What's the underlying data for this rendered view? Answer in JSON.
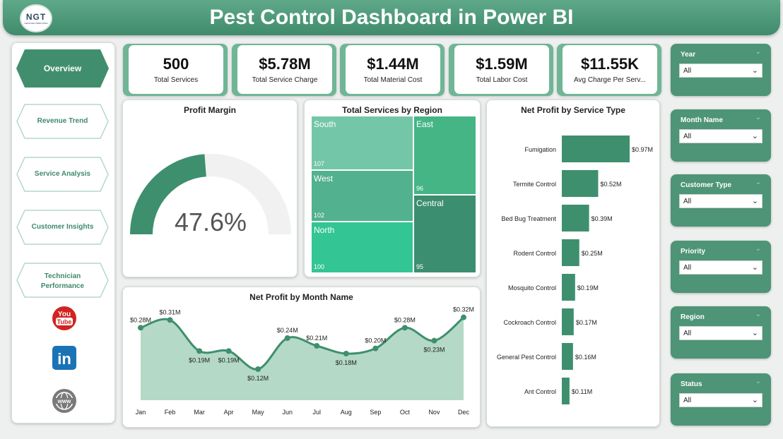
{
  "header": {
    "title": "Pest Control Dashboard in Power BI",
    "logo_text": "NGT",
    "logo_sub": "NEXTGEN TEMPLATES"
  },
  "nav": {
    "items": [
      {
        "label": "Overview",
        "active": true
      },
      {
        "label": "Revenue Trend",
        "active": false
      },
      {
        "label": "Service Analysis",
        "active": false
      },
      {
        "label": "Customer Insights",
        "active": false
      },
      {
        "label": "Technician Performance",
        "active": false
      }
    ],
    "social": {
      "youtube_line1": "You",
      "youtube_line2": "Tube",
      "linkedin": "in",
      "web": "www"
    }
  },
  "kpis": [
    {
      "value": "500",
      "label": "Total Services"
    },
    {
      "value": "$5.78M",
      "label": "Total Service Charge"
    },
    {
      "value": "$1.44M",
      "label": "Total Material Cost"
    },
    {
      "value": "$1.59M",
      "label": "Total Labor Cost"
    },
    {
      "value": "$11.55K",
      "label": "Avg Charge Per Serv..."
    }
  ],
  "gauge": {
    "title": "Profit Margin",
    "value_label": "47.6%",
    "fraction": 0.476
  },
  "treemap": {
    "title": "Total Services by Region",
    "cells": [
      {
        "name": "South",
        "value": "107"
      },
      {
        "name": "West",
        "value": "102"
      },
      {
        "name": "North",
        "value": "100"
      },
      {
        "name": "East",
        "value": "96"
      },
      {
        "name": "Central",
        "value": "95"
      }
    ]
  },
  "bar_chart": {
    "title": "Net Profit by Service Type",
    "categories": [
      "Fumigation",
      "Termite Control",
      "Bed Bug Treatment",
      "Rodent Control",
      "Mosquito Control",
      "Cockroach Control",
      "General Pest Control",
      "Ant Control"
    ],
    "values": [
      0.97,
      0.52,
      0.39,
      0.25,
      0.19,
      0.17,
      0.16,
      0.11
    ],
    "labels": [
      "$0.97M",
      "$0.52M",
      "$0.39M",
      "$0.25M",
      "$0.19M",
      "$0.17M",
      "$0.16M",
      "$0.11M"
    ]
  },
  "line_chart": {
    "title": "Net Profit by Month Name",
    "months": [
      "Jan",
      "Feb",
      "Mar",
      "Apr",
      "May",
      "Jun",
      "Jul",
      "Aug",
      "Sep",
      "Oct",
      "Nov",
      "Dec"
    ],
    "values": [
      0.28,
      0.31,
      0.19,
      0.19,
      0.12,
      0.24,
      0.21,
      0.18,
      0.2,
      0.28,
      0.23,
      0.32
    ],
    "labels": [
      "$0.28M",
      "$0.31M",
      "$0.19M",
      "$0.19M",
      "$0.12M",
      "$0.24M",
      "$0.21M",
      "$0.18M",
      "$0.20M",
      "$0.28M",
      "$0.23M",
      "$0.32M"
    ]
  },
  "chart_data": [
    {
      "type": "bar",
      "title": "Net Profit by Service Type",
      "categories": [
        "Fumigation",
        "Termite Control",
        "Bed Bug Treatment",
        "Rodent Control",
        "Mosquito Control",
        "Cockroach Control",
        "General Pest Control",
        "Ant Control"
      ],
      "values": [
        0.97,
        0.52,
        0.39,
        0.25,
        0.19,
        0.17,
        0.16,
        0.11
      ]
    },
    {
      "type": "area",
      "title": "Net Profit by Month Name",
      "categories": [
        "Jan",
        "Feb",
        "Mar",
        "Apr",
        "May",
        "Jun",
        "Jul",
        "Aug",
        "Sep",
        "Oct",
        "Nov",
        "Dec"
      ],
      "values": [
        0.28,
        0.31,
        0.19,
        0.19,
        0.12,
        0.24,
        0.21,
        0.18,
        0.2,
        0.28,
        0.23,
        0.32
      ]
    },
    {
      "type": "heatmap",
      "title": "Total Services by Region",
      "categories": [
        "South",
        "West",
        "North",
        "East",
        "Central"
      ],
      "values": [
        107,
        102,
        100,
        96,
        95
      ]
    }
  ],
  "slicers": [
    {
      "title": "Year",
      "value": "All"
    },
    {
      "title": "Month Name",
      "value": "All"
    },
    {
      "title": "Customer Type",
      "value": "All"
    },
    {
      "title": "Priority",
      "value": "All"
    },
    {
      "title": "Region",
      "value": "All"
    },
    {
      "title": "Status",
      "value": "All"
    }
  ],
  "colors": {
    "primary": "#3f8b6c",
    "bar": "#3e8f6e",
    "gauge_bg": "#f1f1f1",
    "area_fill": "#b4d9c7"
  }
}
